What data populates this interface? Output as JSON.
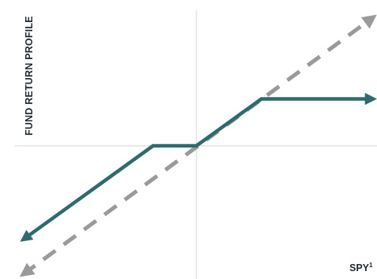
{
  "chart_data": {
    "type": "line",
    "title": "",
    "ylabel": "FUND RETURN PROFILE",
    "xlabel": "SPY",
    "xlabel_superscript": "1",
    "xlim": [
      -10,
      10
    ],
    "ylim": [
      -7.8,
      7.8
    ],
    "grid": false,
    "legend": "none",
    "series": [
      {
        "style": "dashed",
        "color": "#9a9a9a",
        "x": [
          -9.6,
          9.8
        ],
        "y": [
          -7.4,
          7.4
        ]
      },
      {
        "style": "solid",
        "color": "#2e6b6e",
        "x": [
          -9.6,
          -2.4,
          0.0,
          3.6,
          9.8
        ],
        "y": [
          -5.4,
          0.0,
          0.0,
          2.7,
          2.7
        ]
      }
    ]
  }
}
